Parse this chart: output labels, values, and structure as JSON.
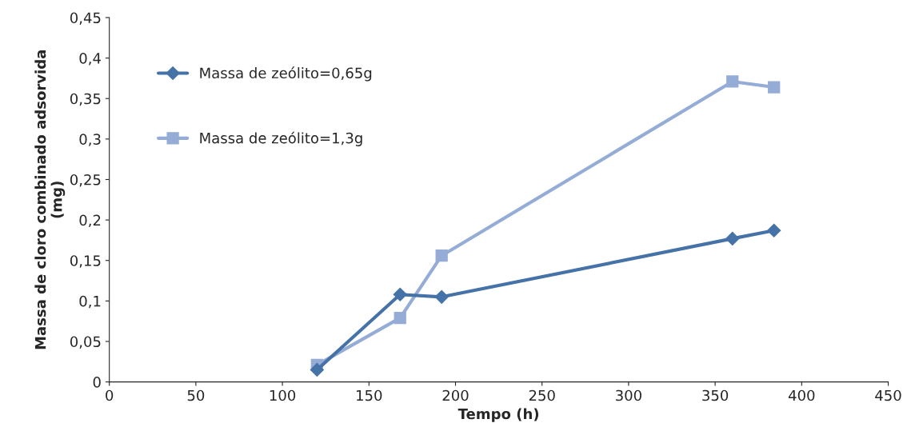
{
  "chart_data": {
    "type": "line",
    "xlabel": "Tempo (h)",
    "ylabel": "Massa de cloro combinado adsorvida\n(mg)",
    "x": [
      120,
      168,
      192,
      360,
      384
    ],
    "series": [
      {
        "name": "Massa de zeólito=0,65g",
        "color": "#4572a7",
        "marker": "diamond",
        "values": [
          0.015,
          0.108,
          0.105,
          0.177,
          0.187
        ]
      },
      {
        "name": "Massa de zeólito=1,3g",
        "color": "#95acd6",
        "marker": "square",
        "values": [
          0.021,
          0.079,
          0.156,
          0.371,
          0.364
        ]
      }
    ],
    "xlim": [
      0,
      450
    ],
    "xticks": [
      0,
      50,
      100,
      150,
      200,
      250,
      300,
      350,
      400,
      450
    ],
    "ylim": [
      0,
      0.45
    ],
    "yticks": [
      0,
      {
        "value": 0.05,
        "label": "0,05"
      },
      {
        "value": 0.1,
        "label": "0,1"
      },
      {
        "value": 0.15,
        "label": "0,15"
      },
      {
        "value": 0.2,
        "label": "0,2"
      },
      {
        "value": 0.25,
        "label": "0,25"
      },
      {
        "value": 0.3,
        "label": "0,3"
      },
      {
        "value": 0.35,
        "label": "0,35"
      },
      {
        "value": 0.4,
        "label": "0,4"
      },
      {
        "value": 0.45,
        "label": "0,45"
      }
    ],
    "legend": "top left",
    "grid": false
  }
}
